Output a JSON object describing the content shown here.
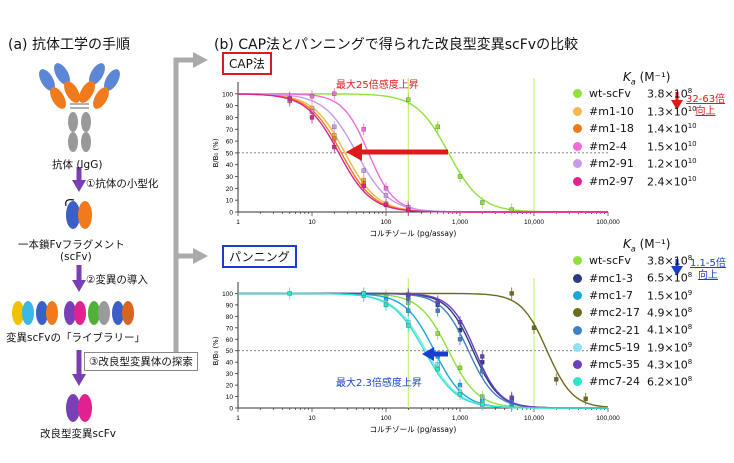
{
  "left_panel": {
    "heading": "(a) 抗体工学の手順",
    "antibody_label": "抗体 (IgG)",
    "step1": "①抗体の小型化",
    "scfv_label_line1": "一本鎖Fvフラグメント",
    "scfv_label_line2": "(scFv)",
    "step2": "②変異の導入",
    "library_label": "変異scFvの「ライブラリー」",
    "step3": "③改良型変異体の探索",
    "result_label": "改良型変異scFv"
  },
  "right_panel": {
    "heading": "(b) CAP法とパンニングで得られた改良型変異scFvの比較",
    "colors": {
      "red": "#e01a1a",
      "blue": "#1a3fd0"
    },
    "cap": {
      "box_label": "CAP法",
      "annotation": "最大25倍感度上昇",
      "ka_header_K": "K",
      "ka_header_sub": "a",
      "ka_header_unit": " (M⁻¹)",
      "improvement_line1": "32-63倍",
      "improvement_line2": "向上",
      "legend": [
        {
          "name": "wt-scFv",
          "mant": "3.8",
          "exp": "8",
          "color": "#8fe23a"
        },
        {
          "name": "#m1-10",
          "mant": "1.3",
          "exp": "10",
          "color": "#f2b84b"
        },
        {
          "name": "#m1-18",
          "mant": "1.4",
          "exp": "10",
          "color": "#f07a1c"
        },
        {
          "name": "#m2-4",
          "mant": "1.5",
          "exp": "10",
          "color": "#f26ad8"
        },
        {
          "name": "#m2-91",
          "mant": "1.2",
          "exp": "10",
          "color": "#c89be8"
        },
        {
          "name": "#m2-97",
          "mant": "2.4",
          "exp": "10",
          "color": "#e0228e"
        }
      ]
    },
    "panning": {
      "box_label": "パンニング",
      "annotation": "最大2.3倍感度上昇",
      "ka_header_K": "K",
      "ka_header_sub": "a",
      "ka_header_unit": " (M⁻¹)",
      "improvement_line1": "1.1-5倍",
      "improvement_line2": "向上",
      "legend": [
        {
          "name": "wt-scFv",
          "mant": "3.8",
          "exp": "8",
          "color": "#8fe23a"
        },
        {
          "name": "#mc1-3",
          "mant": "6.5",
          "exp": "8",
          "color": "#2b3a7a"
        },
        {
          "name": "#mc1-7",
          "mant": "1.5",
          "exp": "9",
          "color": "#1aa9d8"
        },
        {
          "name": "#mc2-17",
          "mant": "4.9",
          "exp": "8",
          "color": "#6e6a1c"
        },
        {
          "name": "#mc2-21",
          "mant": "4.1",
          "exp": "8",
          "color": "#3f7fc8"
        },
        {
          "name": "#mc5-19",
          "mant": "1.9",
          "exp": "9",
          "color": "#8fe0f0"
        },
        {
          "name": "#mc5-35",
          "mant": "4.3",
          "exp": "8",
          "color": "#6a3fc0"
        },
        {
          "name": "#mc7-24",
          "mant": "6.2",
          "exp": "8",
          "color": "#2ae8c8"
        }
      ]
    }
  },
  "chart_data": [
    {
      "type": "scatter",
      "title": "CAP法",
      "xlabel": "コルチゾール (pg/assay)",
      "ylabel": "B/B₀ (%)",
      "x_scale": "log",
      "xlim": [
        1,
        100000
      ],
      "ylim": [
        0,
        110
      ],
      "x_ticks": [
        "1",
        "10",
        "100",
        "1,000",
        "10,000",
        "100,000"
      ],
      "y_ticks": [
        "0",
        "10",
        "20",
        "30",
        "40",
        "50",
        "60",
        "70",
        "80",
        "90",
        "100"
      ],
      "reference_line_y": 50,
      "reference_lines_x": [
        200,
        10000
      ],
      "series": [
        {
          "name": "wt-scFv",
          "color": "#8fe23a",
          "ic50": 700,
          "hill": 2.0,
          "x": [
            200,
            500,
            1000,
            2000,
            5000
          ],
          "y": [
            95,
            72,
            30,
            8,
            2
          ]
        },
        {
          "name": "#m1-10",
          "color": "#f2b84b",
          "ic50": 28,
          "hill": 2.0,
          "x": [
            5,
            10,
            20,
            50,
            100,
            200
          ],
          "y": [
            95,
            88,
            65,
            27,
            7,
            2
          ]
        },
        {
          "name": "#m1-18",
          "color": "#f07a1c",
          "ic50": 25,
          "hill": 2.0,
          "x": [
            5,
            10,
            20,
            50,
            100,
            200
          ],
          "y": [
            94,
            85,
            62,
            24,
            6,
            2
          ]
        },
        {
          "name": "#m2-4",
          "color": "#f26ad8",
          "ic50": 58,
          "hill": 2.5,
          "x": [
            5,
            10,
            20,
            50,
            100,
            200
          ],
          "y": [
            97,
            98,
            100,
            70,
            20,
            4
          ]
        },
        {
          "name": "#m2-91",
          "color": "#c89be8",
          "ic50": 40,
          "hill": 2.0,
          "x": [
            5,
            10,
            20,
            50,
            100,
            200
          ],
          "y": [
            95,
            85,
            72,
            35,
            14,
            4
          ]
        },
        {
          "name": "#m2-97",
          "color": "#e0228e",
          "ic50": 23,
          "hill": 2.0,
          "x": [
            5,
            10,
            20,
            50,
            100,
            200
          ],
          "y": [
            96,
            80,
            55,
            22,
            6,
            2
          ]
        }
      ]
    },
    {
      "type": "scatter",
      "title": "パンニング",
      "xlabel": "コルチゾール (pg/assay)",
      "ylabel": "B/B₀ (%)",
      "x_scale": "log",
      "xlim": [
        1,
        100000
      ],
      "ylim": [
        0,
        110
      ],
      "x_ticks": [
        "1",
        "10",
        "100",
        "1,000",
        "10,000",
        "100,000"
      ],
      "y_ticks": [
        "0",
        "10",
        "20",
        "30",
        "40",
        "50",
        "60",
        "70",
        "80",
        "90",
        "100"
      ],
      "reference_line_y": 50,
      "reference_lines_x": [
        200,
        10000
      ],
      "series": [
        {
          "name": "wt-scFv",
          "color": "#8fe23a",
          "ic50": 700,
          "hill": 2.2,
          "x": [
            50,
            100,
            200,
            500,
            1000,
            2000,
            5000
          ],
          "y": [
            100,
            98,
            92,
            65,
            35,
            10,
            2
          ]
        },
        {
          "name": "#mc1-3",
          "color": "#2b3a7a",
          "ic50": 1500,
          "hill": 2.5,
          "x": [
            200,
            500,
            1000,
            2000,
            5000
          ],
          "y": [
            97,
            90,
            68,
            40,
            8
          ]
        },
        {
          "name": "#mc1-7",
          "color": "#1aa9d8",
          "ic50": 450,
          "hill": 2.2,
          "x": [
            50,
            100,
            200,
            500,
            1000,
            2000,
            5000
          ],
          "y": [
            98,
            95,
            85,
            45,
            20,
            6,
            2
          ]
        },
        {
          "name": "#mc2-17",
          "color": "#6e6a1c",
          "ic50": 15000,
          "hill": 2.5,
          "x": [
            5000,
            10000,
            20000,
            50000
          ],
          "y": [
            100,
            70,
            25,
            8
          ]
        },
        {
          "name": "#mc2-21",
          "color": "#3f7fc8",
          "ic50": 1300,
          "hill": 2.4,
          "x": [
            200,
            500,
            1000,
            2000,
            5000
          ],
          "y": [
            96,
            85,
            60,
            32,
            7
          ]
        },
        {
          "name": "#mc5-19",
          "color": "#8fe0f0",
          "ic50": 350,
          "hill": 2.0,
          "x": [
            50,
            100,
            200,
            500,
            1000,
            2000
          ],
          "y": [
            100,
            90,
            75,
            38,
            14,
            4
          ]
        },
        {
          "name": "#mc5-35",
          "color": "#6a3fc0",
          "ic50": 1600,
          "hill": 2.6,
          "x": [
            200,
            500,
            1000,
            2000,
            5000
          ],
          "y": [
            99,
            93,
            75,
            45,
            9
          ]
        },
        {
          "name": "#mc7-24",
          "color": "#2ae8c8",
          "ic50": 330,
          "hill": 2.0,
          "x": [
            5,
            50,
            100,
            200,
            500,
            1000,
            2000
          ],
          "y": [
            100,
            100,
            90,
            72,
            34,
            12,
            3
          ]
        }
      ]
    }
  ]
}
